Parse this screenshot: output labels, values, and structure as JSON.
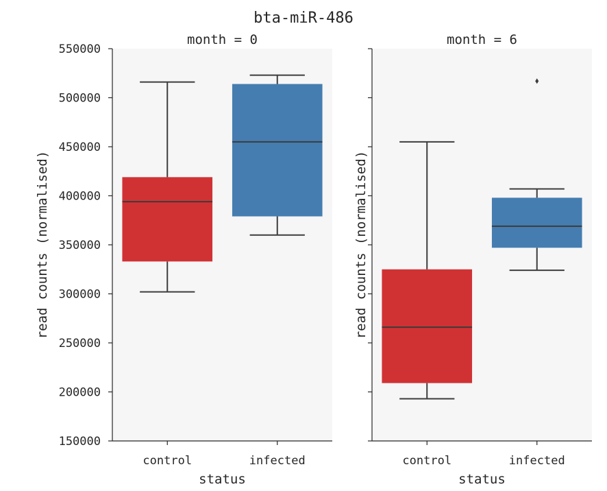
{
  "chart_data": {
    "type": "box",
    "title": "bta-miR-486",
    "ylabel": "read counts (normalised)",
    "xlabel": "status",
    "ylim": [
      150000,
      550000
    ],
    "yticks": [
      150000,
      200000,
      250000,
      300000,
      350000,
      400000,
      450000,
      500000,
      550000
    ],
    "shared_y": true,
    "categories": [
      "control",
      "infected"
    ],
    "colors": {
      "control": "#d03234",
      "infected": "#457db0",
      "panel_bg": "#f6f6f6",
      "line": "#3c3c3c"
    },
    "panels": [
      {
        "title": "month = 0",
        "boxes": [
          {
            "category": "control",
            "whisker_low": 302000,
            "q1": 333000,
            "median": 394000,
            "q3": 419000,
            "whisker_high": 516000,
            "outliers": []
          },
          {
            "category": "infected",
            "whisker_low": 360000,
            "q1": 379000,
            "median": 455000,
            "q3": 514000,
            "whisker_high": 523000,
            "outliers": []
          }
        ]
      },
      {
        "title": "month = 6",
        "boxes": [
          {
            "category": "control",
            "whisker_low": 193000,
            "q1": 209000,
            "median": 266000,
            "q3": 325000,
            "whisker_high": 455000,
            "outliers": []
          },
          {
            "category": "infected",
            "whisker_low": 324000,
            "q1": 347000,
            "median": 369000,
            "q3": 398000,
            "whisker_high": 407000,
            "outliers": [
              517000
            ]
          }
        ]
      }
    ]
  }
}
